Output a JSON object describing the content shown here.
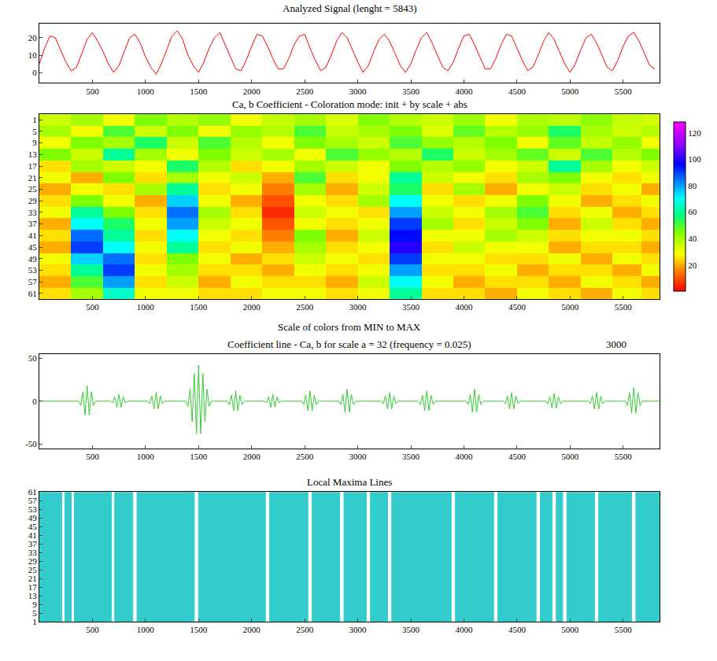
{
  "chart_data": [
    {
      "type": "line",
      "title": "Analyzed Signal (lenght = 5843)",
      "color": "#ff0000",
      "xlim": [
        0,
        5843
      ],
      "xticks": [
        500,
        1000,
        1500,
        2000,
        2500,
        3000,
        3500,
        4000,
        4500,
        5000,
        5500
      ],
      "ylim": [
        -6,
        28
      ],
      "yticks": [
        0,
        10,
        20
      ],
      "x": [
        0,
        50,
        100,
        150,
        200,
        250,
        300,
        350,
        400,
        450,
        500,
        550,
        600,
        650,
        700,
        750,
        800,
        850,
        900,
        950,
        1000,
        1050,
        1100,
        1150,
        1200,
        1250,
        1300,
        1350,
        1400,
        1450,
        1500,
        1550,
        1600,
        1650,
        1700,
        1750,
        1800,
        1850,
        1900,
        1950,
        2000,
        2050,
        2100,
        2150,
        2200,
        2250,
        2300,
        2350,
        2400,
        2450,
        2500,
        2550,
        2600,
        2650,
        2700,
        2750,
        2800,
        2850,
        2900,
        2950,
        3000,
        3050,
        3100,
        3150,
        3200,
        3250,
        3300,
        3350,
        3400,
        3450,
        3500,
        3550,
        3600,
        3650,
        3700,
        3750,
        3800,
        3850,
        3900,
        3950,
        4000,
        4050,
        4100,
        4150,
        4200,
        4250,
        4300,
        4350,
        4400,
        4450,
        4500,
        4550,
        4600,
        4650,
        4700,
        4750,
        4800,
        4850,
        4900,
        4950,
        5000,
        5050,
        5100,
        5150,
        5200,
        5250,
        5300,
        5350,
        5400,
        5450,
        5500,
        5550,
        5600,
        5650,
        5700,
        5750,
        5800
      ],
      "values": [
        5,
        14,
        21,
        20,
        13,
        6,
        1,
        3,
        11,
        19,
        23,
        18,
        12,
        5,
        0,
        4,
        12,
        20,
        22,
        17,
        9,
        3,
        -1,
        5,
        13,
        21,
        24,
        19,
        10,
        4,
        0,
        6,
        14,
        20,
        23,
        16,
        9,
        2,
        1,
        7,
        15,
        22,
        21,
        15,
        8,
        2,
        2,
        8,
        16,
        21,
        22,
        14,
        7,
        1,
        3,
        10,
        18,
        23,
        20,
        13,
        6,
        0,
        4,
        12,
        19,
        22,
        18,
        11,
        4,
        0,
        5,
        13,
        20,
        23,
        17,
        10,
        3,
        1,
        6,
        14,
        21,
        22,
        16,
        9,
        2,
        2,
        8,
        16,
        22,
        21,
        14,
        7,
        1,
        3,
        10,
        18,
        23,
        19,
        12,
        5,
        0,
        5,
        13,
        20,
        22,
        17,
        10,
        3,
        1,
        7,
        15,
        21,
        23,
        18,
        11,
        4,
        2
      ]
    },
    {
      "type": "heatmap",
      "title": "Ca, b Coefficient - Coloration mode: init + by scale + abs",
      "color_scale_note": "Scale of colors from MIN to MAX",
      "xlim": [
        0,
        5843
      ],
      "xticks": [
        500,
        1000,
        1500,
        2000,
        2500,
        3000,
        3500,
        4000,
        4500,
        5000,
        5500
      ],
      "ylim": [
        63,
        -1
      ],
      "yticks": [
        1,
        5,
        9,
        13,
        17,
        21,
        25,
        29,
        33,
        37,
        41,
        45,
        49,
        53,
        57,
        61
      ],
      "zlim": [
        0,
        128
      ],
      "zticks": [
        20,
        40,
        60,
        80,
        100,
        120
      ],
      "x": [
        150,
        450,
        750,
        1050,
        1350,
        1650,
        1950,
        2250,
        2550,
        2850,
        3150,
        3450,
        3750,
        4050,
        4350,
        4650,
        4950,
        5250,
        5550,
        5800
      ],
      "y": [
        1,
        5,
        9,
        13,
        17,
        21,
        25,
        29,
        33,
        37,
        41,
        45,
        49,
        53,
        57,
        61
      ],
      "z": [
        [
          35,
          40,
          30,
          45,
          38,
          42,
          30,
          36,
          40,
          33,
          44,
          38,
          35,
          41,
          30,
          39,
          37,
          43,
          36,
          34
        ],
        [
          40,
          30,
          50,
          35,
          45,
          30,
          42,
          38,
          50,
          36,
          40,
          45,
          33,
          48,
          38,
          42,
          55,
          40,
          35,
          38
        ],
        [
          30,
          45,
          40,
          55,
          35,
          50,
          38,
          30,
          45,
          40,
          35,
          50,
          42,
          38,
          45,
          30,
          48,
          36,
          42,
          30
        ],
        [
          45,
          35,
          60,
          40,
          30,
          45,
          35,
          40,
          30,
          50,
          42,
          38,
          55,
          35,
          40,
          48,
          35,
          50,
          38,
          45
        ],
        [
          25,
          40,
          35,
          30,
          55,
          38,
          25,
          30,
          40,
          35,
          30,
          45,
          38,
          42,
          30,
          35,
          60,
          40,
          30,
          35
        ],
        [
          30,
          20,
          45,
          25,
          40,
          30,
          35,
          20,
          50,
          25,
          30,
          60,
          35,
          30,
          25,
          40,
          45,
          30,
          25,
          30
        ],
        [
          20,
          30,
          25,
          40,
          60,
          25,
          30,
          15,
          40,
          20,
          35,
          55,
          25,
          40,
          20,
          30,
          35,
          25,
          30,
          20
        ],
        [
          25,
          45,
          30,
          20,
          75,
          30,
          20,
          10,
          30,
          25,
          40,
          70,
          30,
          25,
          30,
          45,
          30,
          20,
          25,
          30
        ],
        [
          30,
          60,
          45,
          25,
          85,
          40,
          25,
          5,
          35,
          30,
          25,
          80,
          35,
          30,
          40,
          50,
          25,
          30,
          20,
          25
        ],
        [
          20,
          70,
          55,
          30,
          80,
          35,
          30,
          10,
          30,
          25,
          30,
          90,
          40,
          25,
          35,
          45,
          20,
          35,
          25,
          20
        ],
        [
          25,
          85,
          60,
          25,
          70,
          30,
          25,
          15,
          45,
          20,
          35,
          95,
          30,
          30,
          40,
          35,
          25,
          30,
          30,
          25
        ],
        [
          20,
          90,
          70,
          30,
          60,
          25,
          30,
          20,
          40,
          25,
          30,
          100,
          25,
          35,
          30,
          30,
          20,
          25,
          25,
          20
        ],
        [
          30,
          75,
          85,
          25,
          45,
          30,
          20,
          25,
          35,
          30,
          25,
          90,
          30,
          30,
          25,
          25,
          30,
          20,
          30,
          25
        ],
        [
          25,
          60,
          90,
          30,
          40,
          25,
          25,
          20,
          30,
          25,
          30,
          80,
          25,
          25,
          30,
          20,
          25,
          25,
          20,
          30
        ],
        [
          20,
          50,
          80,
          25,
          35,
          20,
          30,
          25,
          25,
          20,
          35,
          70,
          30,
          20,
          25,
          25,
          20,
          30,
          25,
          20
        ],
        [
          25,
          40,
          65,
          30,
          30,
          25,
          25,
          30,
          30,
          25,
          30,
          60,
          25,
          25,
          20,
          30,
          25,
          20,
          30,
          25
        ]
      ]
    },
    {
      "type": "line",
      "title": "Coefficient line - Ca, b for scale a = 32 (frequency = 0.025)",
      "color": "#33cc33",
      "annotations": [
        "3000"
      ],
      "xlim": [
        0,
        5843
      ],
      "xticks": [
        500,
        1000,
        1500,
        2000,
        2500,
        3000,
        3500,
        4000,
        4500,
        5000,
        5500
      ],
      "ylim": [
        -55,
        55
      ],
      "yticks": [
        -50,
        0,
        50
      ],
      "x": [
        1,
        370,
        390,
        410,
        430,
        450,
        470,
        490,
        510,
        530,
        670,
        690,
        710,
        730,
        750,
        770,
        790,
        810,
        830,
        1020,
        1040,
        1060,
        1080,
        1100,
        1120,
        1140,
        1160,
        1180,
        1380,
        1400,
        1420,
        1440,
        1460,
        1480,
        1500,
        1520,
        1540,
        1560,
        1580,
        1600,
        1620,
        1770,
        1790,
        1810,
        1830,
        1850,
        1870,
        1890,
        1910,
        1930,
        2120,
        2140,
        2160,
        2180,
        2200,
        2220,
        2240,
        2260,
        2280,
        2470,
        2490,
        2510,
        2530,
        2550,
        2570,
        2590,
        2610,
        2630,
        2820,
        2840,
        2860,
        2880,
        2900,
        2920,
        2940,
        2960,
        2980,
        3220,
        3240,
        3260,
        3280,
        3300,
        3320,
        3340,
        3360,
        3380,
        3570,
        3590,
        3610,
        3630,
        3650,
        3670,
        3690,
        3710,
        3730,
        4020,
        4040,
        4060,
        4080,
        4100,
        4120,
        4140,
        4160,
        4180,
        4370,
        4390,
        4410,
        4430,
        4450,
        4470,
        4490,
        4510,
        4530,
        4770,
        4790,
        4810,
        4830,
        4850,
        4870,
        4890,
        4910,
        4930,
        5170,
        5190,
        5210,
        5230,
        5250,
        5270,
        5290,
        5310,
        5330,
        5520,
        5540,
        5560,
        5580,
        5600,
        5620,
        5640,
        5660,
        5680,
        5843
      ],
      "values": [
        0,
        0,
        -5,
        11,
        -16,
        18,
        -16,
        11,
        -5,
        0,
        0,
        -2,
        5,
        -7,
        8,
        -7,
        5,
        -2,
        0,
        0,
        -3,
        6,
        -9,
        10,
        -9,
        6,
        -3,
        0,
        0,
        -6,
        14,
        -24,
        32,
        -38,
        42,
        -38,
        32,
        -24,
        14,
        -6,
        0,
        0,
        -4,
        7,
        -11,
        12,
        -11,
        7,
        -4,
        0,
        0,
        -2,
        5,
        -7,
        8,
        -7,
        5,
        -2,
        0,
        0,
        -4,
        7,
        -11,
        12,
        -11,
        7,
        -4,
        0,
        0,
        -4,
        8,
        -13,
        14,
        -13,
        8,
        -4,
        0,
        0,
        -3,
        6,
        -9,
        10,
        -9,
        6,
        -3,
        0,
        0,
        -4,
        7,
        -11,
        12,
        -11,
        7,
        -4,
        0,
        0,
        -4,
        8,
        -13,
        14,
        -13,
        8,
        -4,
        0,
        0,
        -3,
        6,
        -9,
        10,
        -9,
        6,
        -3,
        0,
        0,
        -3,
        5,
        -8,
        9,
        -8,
        5,
        -3,
        0,
        0,
        -3,
        6,
        -9,
        10,
        -9,
        6,
        -3,
        0,
        0,
        -5,
        10,
        -14,
        16,
        -14,
        10,
        -5,
        0,
        0
      ]
    },
    {
      "type": "area",
      "title": "Local Maxima Lines",
      "color": "#33cccc",
      "xlim": [
        0,
        5843
      ],
      "xticks": [
        500,
        1000,
        1500,
        2000,
        2500,
        3000,
        3500,
        4000,
        4500,
        5000,
        5500
      ],
      "ylim": [
        1,
        61
      ],
      "yticks": [
        1,
        5,
        9,
        13,
        17,
        21,
        25,
        29,
        33,
        37,
        41,
        45,
        49,
        53,
        57,
        61
      ],
      "bands": [
        [
          1,
          210
        ],
        [
          240,
          300
        ],
        [
          330,
          680
        ],
        [
          710,
          880
        ],
        [
          920,
          1460
        ],
        [
          1500,
          2130
        ],
        [
          2170,
          2530
        ],
        [
          2570,
          2830
        ],
        [
          2870,
          3080
        ],
        [
          3120,
          3280
        ],
        [
          3320,
          3880
        ],
        [
          3920,
          4280
        ],
        [
          4320,
          4680
        ],
        [
          4720,
          4830
        ],
        [
          4870,
          4930
        ],
        [
          4970,
          5230
        ],
        [
          5270,
          5580
        ],
        [
          5620,
          5843
        ]
      ]
    }
  ]
}
